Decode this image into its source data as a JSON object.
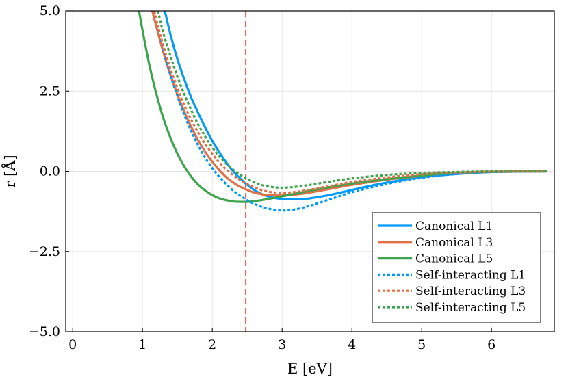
{
  "chart_data": {
    "type": "line",
    "xlabel": "E [eV]",
    "ylabel": "r [Å]",
    "xlim": [
      -0.1,
      6.9
    ],
    "ylim": [
      -5.0,
      5.0
    ],
    "xticks": [
      0,
      1,
      2,
      3,
      4,
      5,
      6
    ],
    "yticks": [
      -5.0,
      -2.5,
      0.0,
      2.5,
      5.0
    ],
    "xtick_labels": [
      "0",
      "1",
      "2",
      "3",
      "4",
      "5",
      "6"
    ],
    "ytick_labels": [
      "−5.0",
      "−2.5",
      "0.0",
      "2.5",
      "5.0"
    ],
    "grid": true,
    "legend_position": "bottom-right",
    "vline": {
      "x": 2.48,
      "color": "#e8302b",
      "style": "dashed"
    },
    "series": [
      {
        "name": "Canonical L1",
        "color": "#009af9",
        "style": "solid",
        "x": [
          1.32,
          1.4,
          1.5,
          1.6,
          1.7,
          1.8,
          1.9,
          2.0,
          2.1,
          2.2,
          2.3,
          2.4,
          2.5,
          2.6,
          2.7,
          2.8,
          2.9,
          3.0,
          3.1,
          3.2,
          3.3,
          3.4,
          3.6,
          3.8,
          4.0,
          4.2,
          4.5,
          5.0,
          5.5,
          6.0,
          6.5,
          6.78
        ],
        "y": [
          5.0,
          4.27,
          3.5,
          2.86,
          2.29,
          1.81,
          1.36,
          0.95,
          0.6,
          0.28,
          0.0,
          -0.22,
          -0.42,
          -0.58,
          -0.7,
          -0.78,
          -0.83,
          -0.86,
          -0.87,
          -0.87,
          -0.86,
          -0.84,
          -0.77,
          -0.68,
          -0.58,
          -0.48,
          -0.35,
          -0.18,
          -0.08,
          -0.02,
          0.0,
          0.0
        ]
      },
      {
        "name": "Canonical L3",
        "color": "#e26f46",
        "style": "solid",
        "x": [
          1.14,
          1.2,
          1.3,
          1.4,
          1.5,
          1.6,
          1.7,
          1.8,
          1.9,
          2.0,
          2.1,
          2.2,
          2.3,
          2.4,
          2.5,
          2.6,
          2.7,
          2.8,
          2.9,
          3.0,
          3.1,
          3.2,
          3.4,
          3.6,
          3.8,
          4.0,
          4.5,
          5.0,
          5.5,
          6.0,
          6.78
        ],
        "y": [
          5.0,
          4.5,
          3.7,
          3.0,
          2.4,
          1.85,
          1.38,
          0.96,
          0.6,
          0.3,
          0.04,
          -0.18,
          -0.35,
          -0.48,
          -0.58,
          -0.66,
          -0.71,
          -0.74,
          -0.75,
          -0.75,
          -0.74,
          -0.72,
          -0.66,
          -0.58,
          -0.5,
          -0.42,
          -0.26,
          -0.14,
          -0.06,
          -0.02,
          0.0
        ]
      },
      {
        "name": "Canonical L5",
        "color": "#3da44d",
        "style": "solid",
        "x": [
          0.95,
          1.0,
          1.1,
          1.2,
          1.3,
          1.4,
          1.5,
          1.6,
          1.7,
          1.8,
          1.9,
          2.0,
          2.1,
          2.2,
          2.3,
          2.4,
          2.5,
          2.6,
          2.7,
          2.8,
          3.0,
          3.2,
          3.4,
          3.6,
          3.8,
          4.0,
          4.5,
          5.0,
          5.5,
          6.0,
          6.78
        ],
        "y": [
          5.0,
          4.4,
          3.3,
          2.4,
          1.65,
          1.05,
          0.55,
          0.15,
          -0.17,
          -0.42,
          -0.6,
          -0.74,
          -0.84,
          -0.9,
          -0.94,
          -0.95,
          -0.95,
          -0.93,
          -0.9,
          -0.86,
          -0.78,
          -0.69,
          -0.6,
          -0.52,
          -0.45,
          -0.38,
          -0.24,
          -0.13,
          -0.06,
          -0.02,
          0.0
        ]
      },
      {
        "name": "Self-interacting L1",
        "color": "#009af9",
        "style": "dotted",
        "x": [
          1.17,
          1.2,
          1.3,
          1.4,
          1.5,
          1.6,
          1.7,
          1.8,
          1.9,
          2.0,
          2.1,
          2.2,
          2.3,
          2.4,
          2.5,
          2.6,
          2.7,
          2.8,
          2.9,
          3.0,
          3.1,
          3.2,
          3.3,
          3.4,
          3.6,
          3.8,
          4.0,
          4.5,
          5.0,
          5.5,
          6.0,
          6.78
        ],
        "y": [
          5.0,
          4.7,
          3.8,
          3.0,
          2.35,
          1.75,
          1.25,
          0.8,
          0.42,
          0.1,
          -0.17,
          -0.4,
          -0.6,
          -0.76,
          -0.9,
          -1.01,
          -1.1,
          -1.16,
          -1.2,
          -1.22,
          -1.21,
          -1.18,
          -1.13,
          -1.07,
          -0.93,
          -0.79,
          -0.65,
          -0.39,
          -0.2,
          -0.08,
          -0.02,
          0.0
        ]
      },
      {
        "name": "Self-interacting L3",
        "color": "#e26f46",
        "style": "dotted",
        "x": [
          1.17,
          1.2,
          1.3,
          1.4,
          1.5,
          1.6,
          1.7,
          1.8,
          1.9,
          2.0,
          2.1,
          2.2,
          2.3,
          2.4,
          2.5,
          2.6,
          2.7,
          2.8,
          2.9,
          3.0,
          3.1,
          3.2,
          3.4,
          3.6,
          3.8,
          4.0,
          4.5,
          5.0,
          5.5,
          6.0,
          6.78
        ],
        "y": [
          5.0,
          4.7,
          3.9,
          3.2,
          2.6,
          2.05,
          1.6,
          1.2,
          0.85,
          0.55,
          0.28,
          0.06,
          -0.12,
          -0.27,
          -0.4,
          -0.5,
          -0.58,
          -0.63,
          -0.66,
          -0.67,
          -0.66,
          -0.64,
          -0.57,
          -0.49,
          -0.41,
          -0.33,
          -0.19,
          -0.09,
          -0.04,
          -0.01,
          0.0
        ]
      },
      {
        "name": "Self-interacting L5",
        "color": "#3da44d",
        "style": "dotted",
        "x": [
          1.22,
          1.3,
          1.4,
          1.5,
          1.6,
          1.7,
          1.8,
          1.9,
          2.0,
          2.1,
          2.2,
          2.3,
          2.4,
          2.5,
          2.6,
          2.7,
          2.8,
          2.9,
          3.0,
          3.1,
          3.2,
          3.4,
          3.6,
          3.8,
          4.0,
          4.5,
          5.0,
          5.5,
          6.0,
          6.78
        ],
        "y": [
          5.0,
          4.3,
          3.6,
          2.95,
          2.4,
          1.9,
          1.45,
          1.08,
          0.75,
          0.47,
          0.24,
          0.05,
          -0.11,
          -0.24,
          -0.34,
          -0.42,
          -0.47,
          -0.5,
          -0.51,
          -0.5,
          -0.48,
          -0.42,
          -0.35,
          -0.28,
          -0.22,
          -0.11,
          -0.05,
          -0.02,
          0.0,
          0.0
        ]
      }
    ]
  }
}
